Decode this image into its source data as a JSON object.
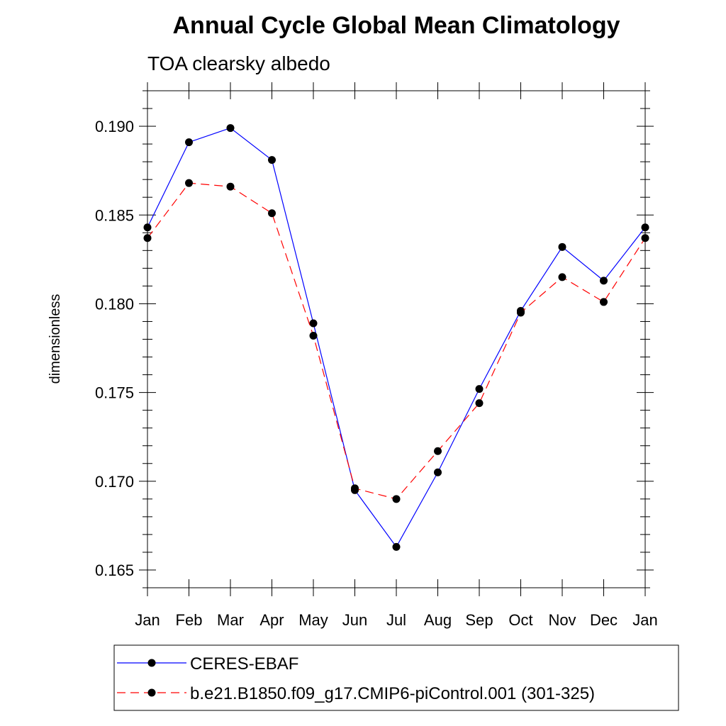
{
  "chart_data": {
    "type": "line",
    "title": "Annual Cycle Global Mean Climatology",
    "subtitle": "TOA clearsky albedo",
    "ylabel": "dimensionless",
    "xlabel": "",
    "categories": [
      "Jan",
      "Feb",
      "Mar",
      "Apr",
      "May",
      "Jun",
      "Jul",
      "Aug",
      "Sep",
      "Oct",
      "Nov",
      "Dec",
      "Jan"
    ],
    "ylim": [
      0.164,
      0.192
    ],
    "yticks": [
      0.165,
      0.17,
      0.175,
      0.18,
      0.185,
      0.19
    ],
    "ytick_labels": [
      "0.165",
      "0.170",
      "0.175",
      "0.180",
      "0.185",
      "0.190"
    ],
    "series": [
      {
        "name": "CERES-EBAF",
        "color": "#0000ff",
        "dash": "solid",
        "values": [
          0.1843,
          0.1891,
          0.1899,
          0.1881,
          0.1789,
          0.1695,
          0.1663,
          0.1705,
          0.1752,
          0.1796,
          0.1832,
          0.1813,
          0.1843
        ]
      },
      {
        "name": "b.e21.B1850.f09_g17.CMIP6-piControl.001 (301-325)",
        "color": "#ff0000",
        "dash": "dashed",
        "values": [
          0.1837,
          0.1868,
          0.1866,
          0.1851,
          0.1782,
          0.1696,
          0.169,
          0.1717,
          0.1744,
          0.1795,
          0.1815,
          0.1801,
          0.1837
        ]
      }
    ],
    "legend_position": "bottom",
    "marker": "filled-circle",
    "grid": false
  }
}
